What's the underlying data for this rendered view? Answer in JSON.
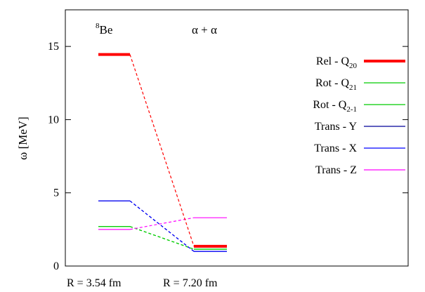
{
  "chart_data": {
    "type": "level-scheme",
    "ylabel": "ω [MeV]",
    "ylim": [
      0,
      17.5
    ],
    "yticks": [
      "0",
      "5",
      "10",
      "15"
    ],
    "ytick_values": [
      0,
      5,
      10,
      15
    ],
    "grid": false,
    "legend_position": "top-right",
    "columns": [
      {
        "label_base": "8",
        "label_text": "Be",
        "xlabel": "R = 3.54 fm"
      },
      {
        "label_base": "α + α",
        "label_text": "",
        "xlabel": "R = 7.20 fm"
      }
    ],
    "series": [
      {
        "name": "Rel - Q",
        "sub": "20",
        "color": "#ff0000",
        "width": 4,
        "values": [
          14.45,
          1.35
        ]
      },
      {
        "name": "Rot - Q",
        "sub": "21",
        "color": "#00cc00",
        "width": 1.2,
        "values": [
          2.7,
          1.15
        ]
      },
      {
        "name": "Rot - Q",
        "sub": "2-1",
        "color": "#00cc00",
        "width": 1.2,
        "values": [
          2.7,
          1.15
        ]
      },
      {
        "name": "Trans - Y",
        "sub": "",
        "color": "#000099",
        "width": 1.2,
        "values": [
          4.45,
          1.0
        ]
      },
      {
        "name": "Trans - X",
        "sub": "",
        "color": "#0000ff",
        "width": 1.2,
        "values": [
          4.45,
          1.0
        ]
      },
      {
        "name": "Trans - Z",
        "sub": "",
        "color": "#ff00ff",
        "width": 1.2,
        "values": [
          2.5,
          3.3
        ]
      }
    ]
  }
}
